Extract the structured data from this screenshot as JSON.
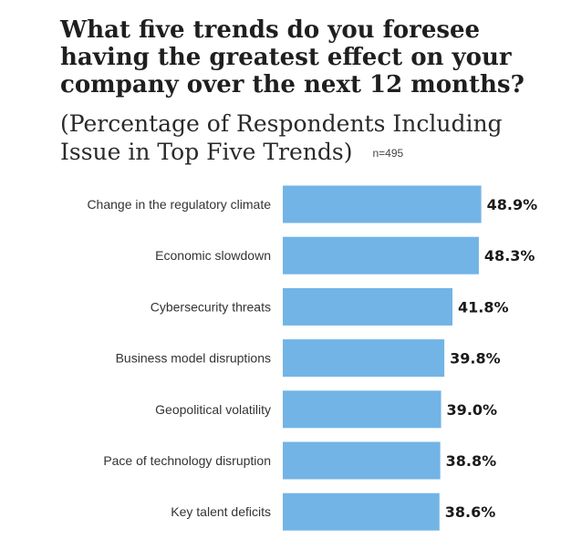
{
  "chart_data": {
    "type": "bar",
    "orientation": "horizontal",
    "title": "What five trends do you foresee having the greatest effect on your company over the next 12 months?",
    "subtitle": "(Percentage of Respondents Including Issue in Top Five Trends)",
    "note": "n=495",
    "categories": [
      "Change in the regulatory climate",
      "Economic slowdown",
      "Cybersecurity threats",
      "Business model disruptions",
      "Geopolitical volatility",
      "Pace of technology disruption",
      "Key talent deficits"
    ],
    "values": [
      48.9,
      48.3,
      41.8,
      39.8,
      39.0,
      38.8,
      38.6
    ],
    "value_labels": [
      "48.9%",
      "48.3%",
      "41.8%",
      "39.8%",
      "39.0%",
      "38.8%",
      "38.6%"
    ],
    "xlim": [
      0,
      50
    ],
    "grid": false,
    "legend": "none",
    "bar_color": "#72b4e6"
  }
}
